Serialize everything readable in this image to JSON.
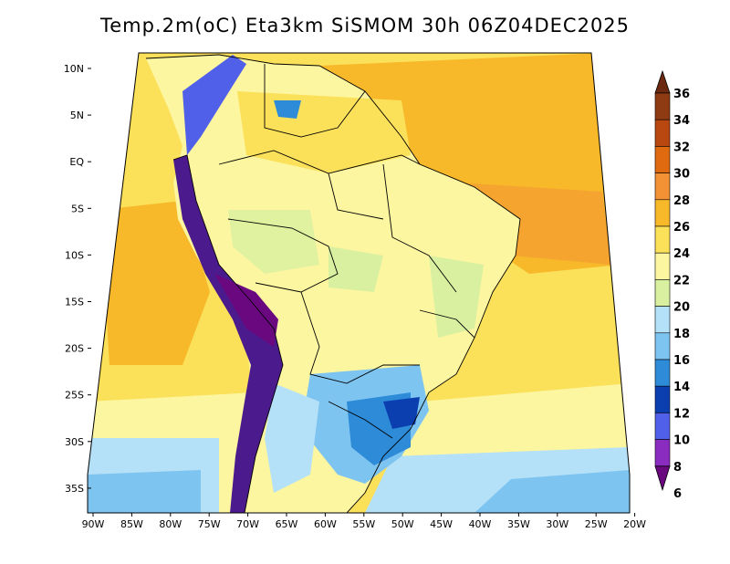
{
  "title": "Temp.2m(oC) Eta3km SiSMOM 30h 06Z04DEC2025",
  "map": {
    "lat_ticks": [
      "10N",
      "5N",
      "EQ",
      "5S",
      "10S",
      "15S",
      "20S",
      "25S",
      "30S",
      "35S"
    ],
    "lon_ticks": [
      "90W",
      "85W",
      "80W",
      "75W",
      "70W",
      "65W",
      "60W",
      "55W",
      "50W",
      "45W",
      "40W",
      "35W",
      "30W",
      "25W",
      "20W"
    ],
    "extent": {
      "lon_min": -90,
      "lon_max": -20,
      "lat_min": -37,
      "lat_max": 11
    }
  },
  "colorbar": {
    "labels": [
      "36",
      "34",
      "32",
      "30",
      "28",
      "26",
      "24",
      "22",
      "20",
      "18",
      "16",
      "14",
      "12",
      "10",
      "8",
      "6"
    ],
    "colors": [
      "#6b2a10",
      "#8e3a12",
      "#b8480f",
      "#e06a10",
      "#f39234",
      "#f7b82a",
      "#fbe059",
      "#fdf6a0",
      "#d8f0a0",
      "#b4e0f8",
      "#7ec4f0",
      "#2e8bd8",
      "#0b3fb0",
      "#5060e8",
      "#8a2cc0",
      "#6a0880"
    ]
  },
  "palette": {
    "ocean_warm": "#f7b82a",
    "ocean_mid": "#fbe059",
    "ocean_cool": "#fdf6a0",
    "land": "#fdf6a0",
    "andes": "#4b1a8c",
    "south_cool": "#7ec4f0",
    "boundary": "#000000"
  }
}
